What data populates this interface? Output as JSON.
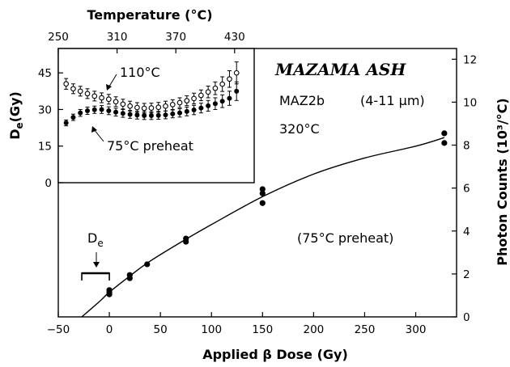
{
  "chart_data": [
    {
      "type": "scatter",
      "title": "MAZAMA ASH",
      "xlabel": "Applied β Dose (Gy)",
      "ylabel": "Photon Counts (10³/°C)",
      "xlim": [
        -50,
        340
      ],
      "ylim": [
        0,
        12.5
      ],
      "x_ticks": [
        -50,
        0,
        50,
        100,
        150,
        200,
        250,
        300
      ],
      "y_ticks": [
        0,
        2,
        4,
        6,
        8,
        10,
        12
      ],
      "grid": false,
      "series": [
        {
          "points": [
            [
              0,
              1.05
            ],
            [
              0,
              1.15
            ],
            [
              0,
              1.25
            ],
            [
              20,
              1.8
            ],
            [
              20,
              1.95
            ],
            [
              37,
              2.45
            ],
            [
              75,
              3.5
            ],
            [
              75,
              3.65
            ],
            [
              150,
              5.3
            ],
            [
              150,
              5.75
            ],
            [
              150,
              5.95
            ],
            [
              328,
              8.1
            ],
            [
              328,
              8.55
            ]
          ]
        }
      ],
      "fit_curve": [
        [
          -27,
          0
        ],
        [
          -10,
          0.7
        ],
        [
          0,
          1.15
        ],
        [
          20,
          1.9
        ],
        [
          40,
          2.6
        ],
        [
          75,
          3.62
        ],
        [
          100,
          4.3
        ],
        [
          150,
          5.6
        ],
        [
          200,
          6.65
        ],
        [
          250,
          7.4
        ],
        [
          300,
          7.95
        ],
        [
          328,
          8.35
        ]
      ],
      "annotations": {
        "sample": "MAZ2b",
        "grain_size": "(4-11 μm)",
        "temperature": "320°C",
        "preheat_main": "(75°C preheat)",
        "de_label": "D",
        "de_sub": "e",
        "de_bracket": [
          -27,
          0
        ]
      }
    },
    {
      "type": "scatter",
      "xlabel": "Temperature (°C)",
      "ylabel": "De (Gy)",
      "ylabel_main": "D",
      "ylabel_sub": "e",
      "ylabel_unit": "(Gy)",
      "xlim": [
        250,
        450
      ],
      "ylim": [
        0,
        55
      ],
      "x_ticks": [
        250,
        310,
        370,
        430
      ],
      "y_ticks": [
        0,
        15,
        30,
        45
      ],
      "series": [
        {
          "name": "110°C",
          "marker": "open",
          "values": [
            40.5,
            38.5,
            37.5,
            36.5,
            35.5,
            34.8,
            34.2,
            33.2,
            32.2,
            31.4,
            30.8,
            30.5,
            30.6,
            30.9,
            31.4,
            32.0,
            32.8,
            33.6,
            34.5,
            35.8,
            37.2,
            38.7,
            40.4,
            42.5,
            45.0
          ],
          "errors": [
            2.2,
            2.0,
            2.0,
            2.0,
            2.0,
            2.0,
            2.0,
            2.0,
            2.0,
            2.0,
            2.0,
            2.0,
            2.0,
            2.0,
            2.0,
            2.0,
            2.0,
            2.0,
            2.2,
            2.2,
            2.4,
            2.6,
            3.0,
            3.4,
            4.5
          ]
        },
        {
          "name": "75°C preheat",
          "marker": "filled",
          "values": [
            24.5,
            26.8,
            28.6,
            29.5,
            29.9,
            30.0,
            29.5,
            28.9,
            28.4,
            28.0,
            27.7,
            27.5,
            27.5,
            27.6,
            27.8,
            28.2,
            28.6,
            29.2,
            29.8,
            30.6,
            31.5,
            32.4,
            33.4,
            34.6,
            37.5
          ],
          "errors": [
            1.2,
            1.3,
            1.4,
            1.5,
            1.5,
            1.6,
            1.6,
            1.6,
            1.6,
            1.6,
            1.6,
            1.6,
            1.6,
            1.6,
            1.6,
            1.6,
            1.7,
            1.8,
            1.9,
            2.0,
            2.2,
            2.4,
            2.6,
            2.9,
            3.8
          ]
        }
      ]
    }
  ]
}
